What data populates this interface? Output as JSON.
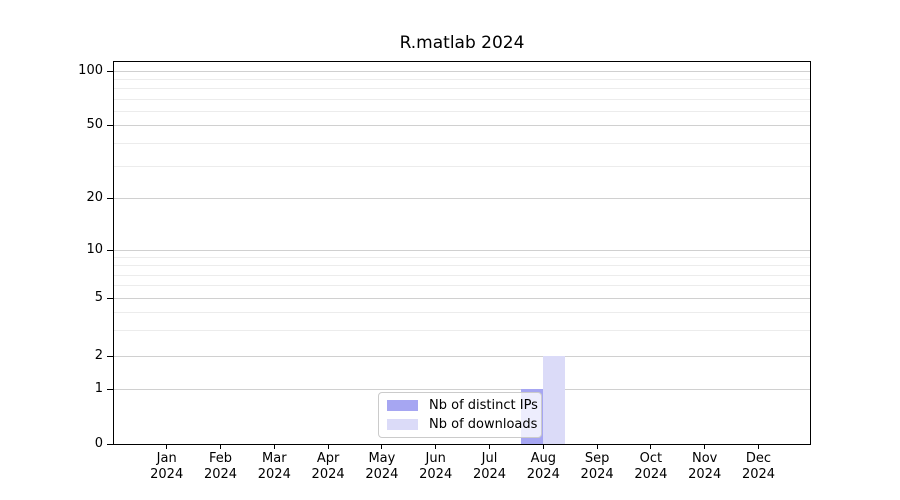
{
  "chart_data": {
    "type": "bar",
    "title": "R.matlab 2024",
    "categories": [
      {
        "label": "Jan",
        "sublabel": "2024"
      },
      {
        "label": "Feb",
        "sublabel": "2024"
      },
      {
        "label": "Mar",
        "sublabel": "2024"
      },
      {
        "label": "Apr",
        "sublabel": "2024"
      },
      {
        "label": "May",
        "sublabel": "2024"
      },
      {
        "label": "Jun",
        "sublabel": "2024"
      },
      {
        "label": "Jul",
        "sublabel": "2024"
      },
      {
        "label": "Aug",
        "sublabel": "2024"
      },
      {
        "label": "Sep",
        "sublabel": "2024"
      },
      {
        "label": "Oct",
        "sublabel": "2024"
      },
      {
        "label": "Nov",
        "sublabel": "2024"
      },
      {
        "label": "Dec",
        "sublabel": "2024"
      }
    ],
    "series": [
      {
        "name": "Nb of distinct IPs",
        "color": "#a6a6f2",
        "values": [
          0,
          0,
          0,
          0,
          0,
          0,
          0,
          1,
          0,
          0,
          0,
          0
        ]
      },
      {
        "name": "Nb of downloads",
        "color": "#dbdbf8",
        "values": [
          0,
          0,
          0,
          0,
          0,
          0,
          0,
          2,
          0,
          0,
          0,
          0
        ]
      }
    ],
    "xlabel": "",
    "ylabel": "",
    "y_axis": {
      "scale": "log above 1, linear 0-1",
      "ticks": [
        0,
        1,
        2,
        5,
        10,
        20,
        50,
        100
      ],
      "minor_gridlines": [
        3,
        4,
        6,
        7,
        8,
        9,
        30,
        40,
        60,
        70,
        80,
        90
      ],
      "range": [
        0,
        110
      ]
    },
    "legend": {
      "position": "lower center",
      "entries": [
        "Nb of distinct IPs",
        "Nb of downloads"
      ]
    },
    "grid": {
      "major_color": "#d0d0d0",
      "minor_color": "#ececec"
    },
    "colors": {
      "spine": "#000000",
      "background": "#ffffff",
      "text": "#000000"
    }
  }
}
